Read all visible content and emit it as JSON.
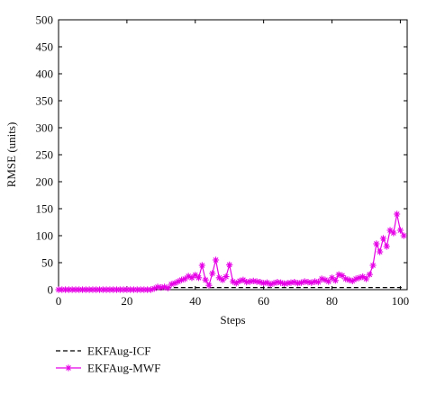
{
  "chart_data": {
    "type": "line",
    "xlabel": "Steps",
    "ylabel": "RMSE (units)",
    "xlim": [
      0,
      102
    ],
    "ylim": [
      0,
      500
    ],
    "x_ticks": [
      0,
      20,
      40,
      60,
      80,
      100
    ],
    "y_ticks": [
      0,
      50,
      100,
      150,
      200,
      250,
      300,
      350,
      400,
      450,
      500
    ],
    "grid": false,
    "legend_position": "below-left",
    "series": [
      {
        "name": "EKFAug-ICF",
        "color": "#000000",
        "style": "dashed",
        "x": [
          0,
          28,
          29,
          30,
          31,
          32,
          33,
          34,
          35,
          36,
          37,
          38,
          39,
          40,
          41,
          42,
          43,
          44,
          45,
          46,
          47,
          48,
          49,
          50,
          101
        ],
        "y": [
          0,
          0,
          1,
          2,
          2,
          3,
          4,
          4,
          4,
          4,
          4,
          4,
          4,
          4,
          4,
          4,
          4,
          4,
          4,
          4,
          4,
          4,
          4,
          4,
          4
        ]
      },
      {
        "name": "EKFAug-MWF",
        "color": "#e600e6",
        "style": "solid-star",
        "x": [
          0,
          1,
          2,
          3,
          4,
          5,
          6,
          7,
          8,
          9,
          10,
          11,
          12,
          13,
          14,
          15,
          16,
          17,
          18,
          19,
          20,
          21,
          22,
          23,
          24,
          25,
          26,
          27,
          28,
          29,
          30,
          31,
          32,
          33,
          34,
          35,
          36,
          37,
          38,
          39,
          40,
          41,
          42,
          43,
          44,
          45,
          46,
          47,
          48,
          49,
          50,
          51,
          52,
          53,
          54,
          55,
          56,
          57,
          58,
          59,
          60,
          61,
          62,
          63,
          64,
          65,
          66,
          67,
          68,
          69,
          70,
          71,
          72,
          73,
          74,
          75,
          76,
          77,
          78,
          79,
          80,
          81,
          82,
          83,
          84,
          85,
          86,
          87,
          88,
          89,
          90,
          91,
          92,
          93,
          94,
          95,
          96,
          97,
          98,
          99,
          100,
          101
        ],
        "y": [
          0,
          0,
          0,
          0,
          0,
          0,
          0,
          0,
          0,
          0,
          0,
          0,
          0,
          0,
          0,
          0,
          0,
          0,
          0,
          0,
          0,
          0,
          0,
          0,
          0,
          0,
          0,
          0,
          2,
          5,
          4,
          5,
          3,
          10,
          12,
          15,
          18,
          20,
          25,
          22,
          27,
          22,
          45,
          18,
          8,
          30,
          55,
          22,
          18,
          24,
          46,
          15,
          12,
          16,
          18,
          14,
          15,
          16,
          15,
          14,
          12,
          13,
          10,
          12,
          14,
          13,
          11,
          12,
          13,
          14,
          12,
          13,
          15,
          14,
          13,
          15,
          14,
          20,
          18,
          15,
          22,
          17,
          28,
          26,
          20,
          18,
          16,
          20,
          22,
          24,
          20,
          28,
          45,
          85,
          70,
          95,
          80,
          110,
          105,
          140,
          110,
          100
        ]
      }
    ]
  }
}
